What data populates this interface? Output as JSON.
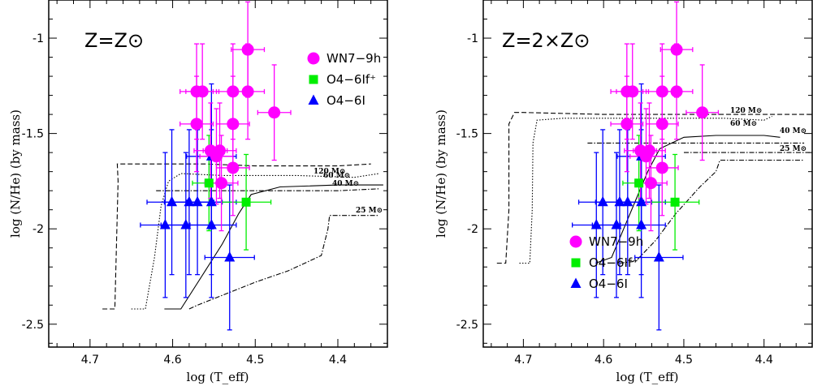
{
  "chart_data": [
    {
      "type": "scatter",
      "title": "Z=Z⊙",
      "xlabel": "log (T_eff)",
      "ylabel": "log (N/He)  (by mass)",
      "xlim": [
        4.75,
        4.34
      ],
      "ylim": [
        -2.62,
        -0.8
      ],
      "x_ticks": [
        "4.7",
        "4.6",
        "4.5",
        "4.4"
      ],
      "y_ticks": [
        "-1",
        "-1.5",
        "-2",
        "-2.5"
      ],
      "legend_position": "top-right",
      "series": [
        {
          "name": "WN7−9h",
          "marker": "circle",
          "color": "#ff00ff",
          "points": [
            {
              "x": 4.571,
              "y": -1.28,
              "xerr": 0.02,
              "yerr": 0.25
            },
            {
              "x": 4.564,
              "y": -1.28,
              "xerr": 0.02,
              "yerr": 0.25
            },
            {
              "x": 4.571,
              "y": -1.45,
              "xerr": 0.02,
              "yerr": 0.25
            },
            {
              "x": 4.527,
              "y": -1.28,
              "xerr": 0.02,
              "yerr": 0.25
            },
            {
              "x": 4.509,
              "y": -1.06,
              "xerr": 0.02,
              "yerr": 0.25
            },
            {
              "x": 4.509,
              "y": -1.28,
              "xerr": 0.02,
              "yerr": 0.25
            },
            {
              "x": 4.527,
              "y": -1.45,
              "xerr": 0.02,
              "yerr": 0.25
            },
            {
              "x": 4.477,
              "y": -1.39,
              "xerr": 0.02,
              "yerr": 0.25
            },
            {
              "x": 4.554,
              "y": -1.59,
              "xerr": 0.02,
              "yerr": 0.25
            },
            {
              "x": 4.543,
              "y": -1.59,
              "xerr": 0.02,
              "yerr": 0.25
            },
            {
              "x": 4.547,
              "y": -1.62,
              "xerr": 0.02,
              "yerr": 0.25
            },
            {
              "x": 4.527,
              "y": -1.68,
              "xerr": 0.02,
              "yerr": 0.25
            },
            {
              "x": 4.541,
              "y": -1.76,
              "xerr": 0.02,
              "yerr": 0.25
            }
          ]
        },
        {
          "name": "O4−6If⁺",
          "marker": "square",
          "color": "#00ee00",
          "points": [
            {
              "x": 4.556,
              "y": -1.76,
              "xerr": 0.02,
              "yerr": 0.25
            },
            {
              "x": 4.511,
              "y": -1.86,
              "xerr": 0.03,
              "yerr": 0.25
            }
          ]
        },
        {
          "name": "O4−6I",
          "marker": "triangle",
          "color": "#0000ff",
          "points": [
            {
              "x": 4.601,
              "y": -1.86,
              "xerr": 0.03,
              "yerr": 0.38
            },
            {
              "x": 4.58,
              "y": -1.86,
              "xerr": 0.03,
              "yerr": 0.38
            },
            {
              "x": 4.57,
              "y": -1.86,
              "xerr": 0.03,
              "yerr": 0.38
            },
            {
              "x": 4.553,
              "y": -1.86,
              "xerr": 0.03,
              "yerr": 0.38
            },
            {
              "x": 4.553,
              "y": -1.62,
              "xerr": 0.03,
              "yerr": 0.38
            },
            {
              "x": 4.609,
              "y": -1.98,
              "xerr": 0.03,
              "yerr": 0.38
            },
            {
              "x": 4.584,
              "y": -1.98,
              "xerr": 0.03,
              "yerr": 0.38
            },
            {
              "x": 4.553,
              "y": -1.98,
              "xerr": 0.03,
              "yerr": 0.38
            },
            {
              "x": 4.531,
              "y": -2.15,
              "xerr": 0.03,
              "yerr": 0.38
            }
          ]
        }
      ],
      "tracks": [
        {
          "label": "120 M⊙",
          "dash": "6,3",
          "points": [
            [
              4.685,
              -2.42
            ],
            [
              4.67,
              -2.42
            ],
            [
              4.666,
              -1.75
            ],
            [
              4.667,
              -1.66
            ],
            [
              4.62,
              -1.66
            ],
            [
              4.56,
              -1.66
            ],
            [
              4.5,
              -1.67
            ],
            [
              4.44,
              -1.67
            ],
            [
              4.4,
              -1.67
            ],
            [
              4.36,
              -1.66
            ]
          ]
        },
        {
          "label": "60 M⊙",
          "dash": "1.5,2",
          "points": [
            [
              4.65,
              -2.42
            ],
            [
              4.633,
              -2.42
            ],
            [
              4.622,
              -2.15
            ],
            [
              4.614,
              -1.88
            ],
            [
              4.605,
              -1.75
            ],
            [
              4.59,
              -1.71
            ],
            [
              4.54,
              -1.72
            ],
            [
              4.45,
              -1.72
            ],
            [
              4.38,
              -1.73
            ],
            [
              4.35,
              -1.71
            ]
          ]
        },
        {
          "label": "40 M⊙",
          "dash": "",
          "points": [
            [
              4.61,
              -2.42
            ],
            [
              4.59,
              -2.42
            ],
            [
              4.565,
              -2.25
            ],
            [
              4.54,
              -2.08
            ],
            [
              4.52,
              -1.92
            ],
            [
              4.505,
              -1.82
            ],
            [
              4.47,
              -1.78
            ],
            [
              4.4,
              -1.77
            ],
            [
              4.36,
              -1.77
            ],
            [
              4.345,
              -1.77
            ]
          ]
        },
        {
          "label": "25 M⊙",
          "dash": "6,2,1.5,2",
          "points": [
            [
              4.58,
              -2.42
            ],
            [
              4.57,
              -2.4
            ],
            [
              4.5,
              -2.28
            ],
            [
              4.46,
              -2.22
            ],
            [
              4.42,
              -2.14
            ],
            [
              4.412,
              -2.0
            ],
            [
              4.41,
              -1.93
            ],
            [
              4.37,
              -1.93
            ],
            [
              4.35,
              -1.93
            ]
          ]
        },
        {
          "label": "",
          "dash": "6,2,1.5,2",
          "points": [
            [
              4.62,
              -1.8
            ],
            [
              4.5,
              -1.8
            ],
            [
              4.4,
              -1.8
            ],
            [
              4.35,
              -1.79
            ]
          ]
        }
      ]
    },
    {
      "type": "scatter",
      "title": "Z=2×Z⊙",
      "xlabel": "log (T_eff)",
      "ylabel": "log (N/He)  (by mass)",
      "xlim": [
        4.75,
        4.34
      ],
      "ylim": [
        -2.62,
        -0.8
      ],
      "x_ticks": [
        "4.7",
        "4.6",
        "4.5",
        "4.4"
      ],
      "y_ticks": [
        "-1",
        "-1.5",
        "-2",
        "-2.5"
      ],
      "legend_position": "bottom-right",
      "series": [
        {
          "name": "WN7−9h",
          "marker": "circle",
          "color": "#ff00ff",
          "points": [
            {
              "x": 4.571,
              "y": -1.28,
              "xerr": 0.02,
              "yerr": 0.25
            },
            {
              "x": 4.564,
              "y": -1.28,
              "xerr": 0.02,
              "yerr": 0.25
            },
            {
              "x": 4.571,
              "y": -1.45,
              "xerr": 0.02,
              "yerr": 0.25
            },
            {
              "x": 4.527,
              "y": -1.28,
              "xerr": 0.02,
              "yerr": 0.25
            },
            {
              "x": 4.509,
              "y": -1.06,
              "xerr": 0.02,
              "yerr": 0.25
            },
            {
              "x": 4.509,
              "y": -1.28,
              "xerr": 0.02,
              "yerr": 0.25
            },
            {
              "x": 4.527,
              "y": -1.45,
              "xerr": 0.02,
              "yerr": 0.25
            },
            {
              "x": 4.477,
              "y": -1.39,
              "xerr": 0.02,
              "yerr": 0.25
            },
            {
              "x": 4.554,
              "y": -1.59,
              "xerr": 0.02,
              "yerr": 0.25
            },
            {
              "x": 4.543,
              "y": -1.59,
              "xerr": 0.02,
              "yerr": 0.25
            },
            {
              "x": 4.547,
              "y": -1.62,
              "xerr": 0.02,
              "yerr": 0.25
            },
            {
              "x": 4.527,
              "y": -1.68,
              "xerr": 0.02,
              "yerr": 0.25
            },
            {
              "x": 4.541,
              "y": -1.76,
              "xerr": 0.02,
              "yerr": 0.25
            }
          ]
        },
        {
          "name": "O4−6If⁺",
          "marker": "square",
          "color": "#00ee00",
          "points": [
            {
              "x": 4.556,
              "y": -1.76,
              "xerr": 0.02,
              "yerr": 0.25
            },
            {
              "x": 4.511,
              "y": -1.86,
              "xerr": 0.03,
              "yerr": 0.25
            }
          ]
        },
        {
          "name": "O4−6I",
          "marker": "triangle",
          "color": "#0000ff",
          "points": [
            {
              "x": 4.601,
              "y": -1.86,
              "xerr": 0.03,
              "yerr": 0.38
            },
            {
              "x": 4.58,
              "y": -1.86,
              "xerr": 0.03,
              "yerr": 0.38
            },
            {
              "x": 4.57,
              "y": -1.86,
              "xerr": 0.03,
              "yerr": 0.38
            },
            {
              "x": 4.553,
              "y": -1.86,
              "xerr": 0.03,
              "yerr": 0.38
            },
            {
              "x": 4.553,
              "y": -1.62,
              "xerr": 0.03,
              "yerr": 0.38
            },
            {
              "x": 4.609,
              "y": -1.98,
              "xerr": 0.03,
              "yerr": 0.38
            },
            {
              "x": 4.584,
              "y": -1.98,
              "xerr": 0.03,
              "yerr": 0.38
            },
            {
              "x": 4.553,
              "y": -1.98,
              "xerr": 0.03,
              "yerr": 0.38
            },
            {
              "x": 4.531,
              "y": -2.15,
              "xerr": 0.03,
              "yerr": 0.38
            }
          ]
        }
      ],
      "tracks": [
        {
          "label": "120 M⊙",
          "dash": "6,3",
          "points": [
            [
              4.733,
              -2.18
            ],
            [
              4.722,
              -2.18
            ],
            [
              4.718,
              -1.9
            ],
            [
              4.718,
              -1.45
            ],
            [
              4.711,
              -1.39
            ],
            [
              4.7,
              -1.39
            ],
            [
              4.6,
              -1.4
            ],
            [
              4.5,
              -1.4
            ],
            [
              4.4,
              -1.4
            ],
            [
              4.34,
              -1.4
            ]
          ]
        },
        {
          "label": "60 M⊙",
          "dash": "1.5,2",
          "points": [
            [
              4.705,
              -2.18
            ],
            [
              4.692,
              -2.18
            ],
            [
              4.689,
              -1.9
            ],
            [
              4.688,
              -1.55
            ],
            [
              4.683,
              -1.43
            ],
            [
              4.65,
              -1.42
            ],
            [
              4.55,
              -1.42
            ],
            [
              4.45,
              -1.42
            ],
            [
              4.4,
              -1.43
            ],
            [
              4.39,
              -1.41
            ]
          ]
        },
        {
          "label": "40 M⊙",
          "dash": "",
          "points": [
            [
              4.61,
              -2.18
            ],
            [
              4.59,
              -2.15
            ],
            [
              4.575,
              -2.0
            ],
            [
              4.56,
              -1.85
            ],
            [
              4.545,
              -1.7
            ],
            [
              4.53,
              -1.58
            ],
            [
              4.5,
              -1.52
            ],
            [
              4.46,
              -1.51
            ],
            [
              4.4,
              -1.51
            ],
            [
              4.38,
              -1.52
            ]
          ]
        },
        {
          "label": "25 M⊙",
          "dash": "6,2,1.5,2",
          "points": [
            [
              4.58,
              -2.18
            ],
            [
              4.56,
              -2.17
            ],
            [
              4.535,
              -2.06
            ],
            [
              4.51,
              -1.92
            ],
            [
              4.48,
              -1.78
            ],
            [
              4.46,
              -1.7
            ],
            [
              4.455,
              -1.64
            ],
            [
              4.4,
              -1.64
            ],
            [
              4.35,
              -1.64
            ]
          ]
        },
        {
          "label": "",
          "dash": "6,2,1.5,2",
          "points": [
            [
              4.62,
              -1.55
            ],
            [
              4.5,
              -1.55
            ],
            [
              4.4,
              -1.55
            ],
            [
              4.35,
              -1.55
            ]
          ]
        },
        {
          "label": "",
          "dash": "6,2,1.5,2",
          "points": [
            [
              4.5,
              -1.6
            ],
            [
              4.4,
              -1.6
            ],
            [
              4.34,
              -1.6
            ]
          ]
        }
      ]
    }
  ]
}
